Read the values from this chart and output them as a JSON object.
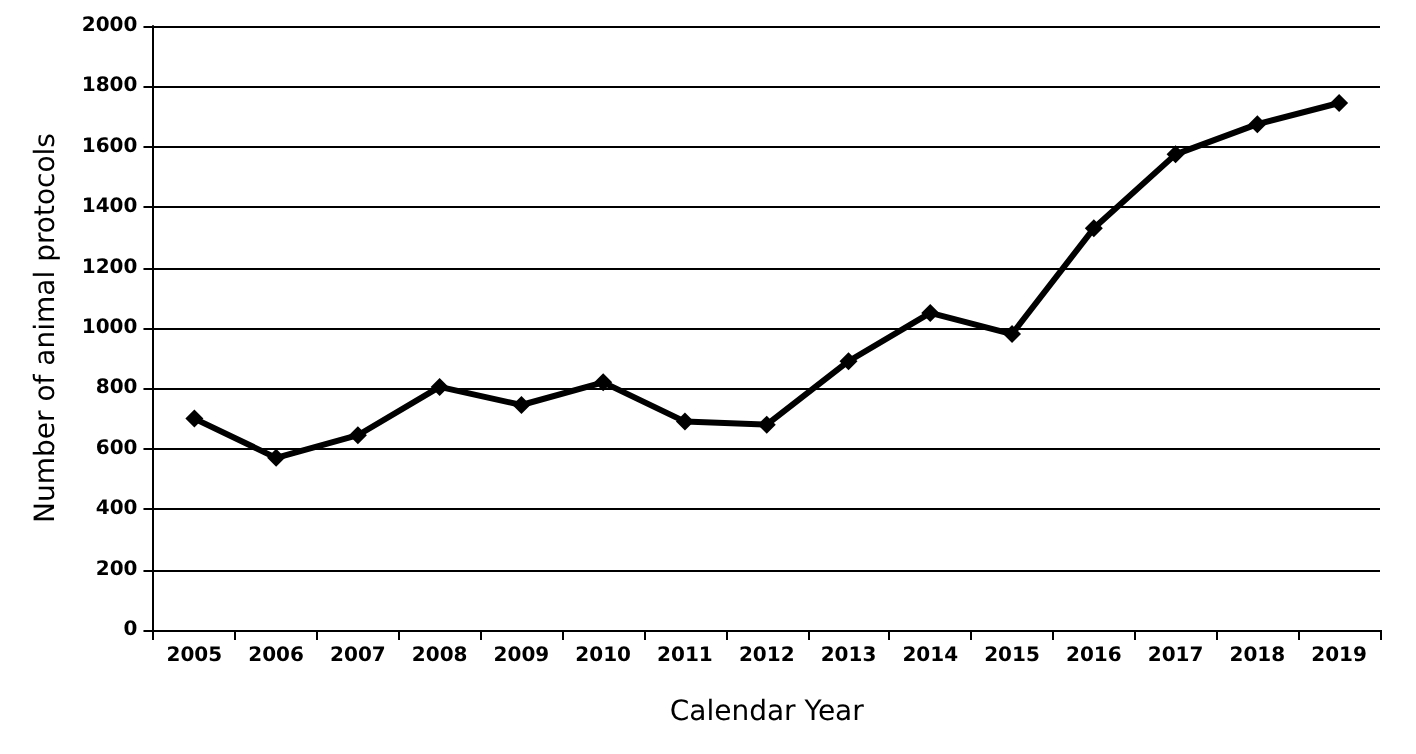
{
  "chart_data": {
    "type": "line",
    "xlabel": "Calendar Year",
    "ylabel": "Number of animal protocols",
    "categories": [
      "2005",
      "2006",
      "2007",
      "2008",
      "2009",
      "2010",
      "2011",
      "2012",
      "2013",
      "2014",
      "2015",
      "2016",
      "2017",
      "2018",
      "2019"
    ],
    "series": [
      {
        "color": "#000000",
        "values": [
          700,
          570,
          645,
          805,
          745,
          820,
          690,
          680,
          890,
          1050,
          980,
          1330,
          1575,
          1675,
          1745
        ]
      }
    ],
    "ylim": [
      0,
      2000
    ],
    "yticks": [
      0,
      200,
      400,
      600,
      800,
      1000,
      1200,
      1400,
      1600,
      1800,
      2000
    ],
    "grid": "y",
    "marker": "diamond",
    "line_style": "solid"
  }
}
